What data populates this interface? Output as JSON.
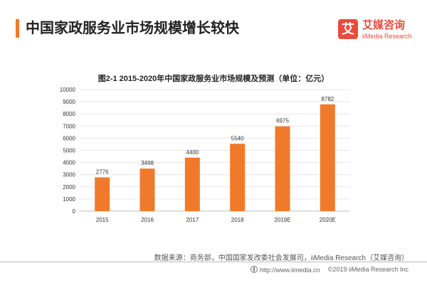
{
  "header": {
    "title": "中国家政服务业市场规模增长较快",
    "accent_color": "#f07a2b"
  },
  "brand": {
    "logo_char": "艾",
    "name": "艾媒咨询",
    "subtitle": "iiMedia Research",
    "color": "#e84c3d"
  },
  "chart_data": {
    "type": "bar",
    "title": "图2-1 2015-2020年中国家政服务业市场规模及预测（单位：亿元）",
    "categories": [
      "2015",
      "2016",
      "2017",
      "2018",
      "2019E",
      "2020E"
    ],
    "values": [
      2776,
      3498,
      4400,
      5540,
      6975,
      8782
    ],
    "ylim": [
      0,
      10000
    ],
    "yticks": [
      0,
      1000,
      2000,
      3000,
      4000,
      5000,
      6000,
      7000,
      8000,
      9000,
      10000
    ],
    "xlabel": "",
    "ylabel": "",
    "grid": true,
    "data_labels": true,
    "bar_color": "#f07a2b"
  },
  "source": "数据来源：商务部，中国国家发改委社会发展司，iiMedia Research（艾媒咨询）",
  "footer": {
    "url": "http://www.iimedia.cn",
    "copyright": "©2019  iiMedia Research  Inc"
  }
}
